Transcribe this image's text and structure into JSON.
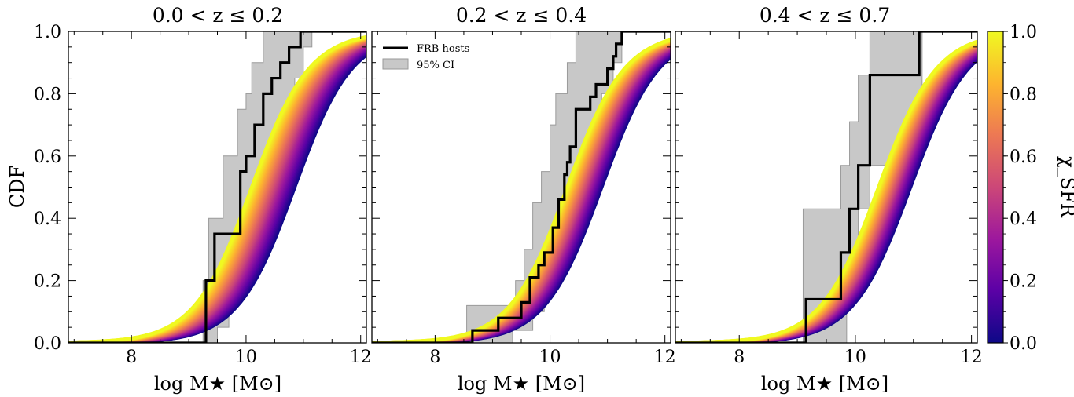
{
  "chart_data": {
    "type": "line",
    "ylabel": "CDF",
    "colorbar": {
      "label": "χ_SFR",
      "ticks": [
        "0.0",
        "0.2",
        "0.4",
        "0.6",
        "0.8",
        "1.0"
      ],
      "range": [
        0,
        1
      ],
      "colormap": "plasma",
      "colors": [
        "#0d0887",
        "#5c01a6",
        "#9c179e",
        "#cc4778",
        "#ed7953",
        "#fdb42f",
        "#f0f921"
      ]
    },
    "legend": {
      "position": "upper-left of middle panel",
      "entries": [
        {
          "label": "FRB hosts",
          "color": "#000000",
          "kind": "line"
        },
        {
          "label": "95% CI",
          "color": "#c8c8c8",
          "kind": "patch"
        }
      ]
    },
    "panels": [
      {
        "title": "0.0 < z ≤ 0.2",
        "xlabel": "log M★ [M⊙]",
        "xlim": [
          6.9,
          12.1
        ],
        "ylim": [
          0,
          1
        ],
        "xticks": [
          "8",
          "10",
          "12"
        ],
        "yticks": [
          "0.0",
          "0.2",
          "0.4",
          "0.6",
          "0.8",
          "1.0"
        ],
        "model_center": [
          10.1,
          10.85
        ],
        "frb_steps": [
          [
            6.9,
            0
          ],
          [
            9.3,
            0
          ],
          [
            9.3,
            0.2
          ],
          [
            9.45,
            0.2
          ],
          [
            9.45,
            0.35
          ],
          [
            9.9,
            0.35
          ],
          [
            9.9,
            0.55
          ],
          [
            10.0,
            0.55
          ],
          [
            10.0,
            0.6
          ],
          [
            10.15,
            0.6
          ],
          [
            10.15,
            0.7
          ],
          [
            10.3,
            0.7
          ],
          [
            10.3,
            0.8
          ],
          [
            10.45,
            0.8
          ],
          [
            10.45,
            0.85
          ],
          [
            10.6,
            0.85
          ],
          [
            10.6,
            0.9
          ],
          [
            10.75,
            0.9
          ],
          [
            10.75,
            0.95
          ],
          [
            10.95,
            0.95
          ],
          [
            10.95,
            1.0
          ],
          [
            12.1,
            1.0
          ]
        ],
        "ci_upper": [
          [
            6.9,
            0
          ],
          [
            9.25,
            0
          ],
          [
            9.25,
            0.2
          ],
          [
            9.35,
            0.2
          ],
          [
            9.35,
            0.4
          ],
          [
            9.6,
            0.4
          ],
          [
            9.6,
            0.6
          ],
          [
            9.85,
            0.6
          ],
          [
            9.85,
            0.75
          ],
          [
            10.0,
            0.75
          ],
          [
            10.0,
            0.8
          ],
          [
            10.1,
            0.8
          ],
          [
            10.1,
            0.9
          ],
          [
            10.3,
            0.9
          ],
          [
            10.3,
            1.0
          ],
          [
            12.1,
            1.0
          ]
        ],
        "ci_lower": [
          [
            6.9,
            0
          ],
          [
            9.5,
            0
          ],
          [
            9.5,
            0.05
          ],
          [
            9.7,
            0.05
          ],
          [
            9.7,
            0.15
          ],
          [
            9.9,
            0.15
          ],
          [
            9.9,
            0.25
          ],
          [
            10.1,
            0.25
          ],
          [
            10.1,
            0.4
          ],
          [
            10.3,
            0.4
          ],
          [
            10.3,
            0.55
          ],
          [
            10.5,
            0.55
          ],
          [
            10.5,
            0.65
          ],
          [
            10.7,
            0.65
          ],
          [
            10.7,
            0.75
          ],
          [
            10.85,
            0.75
          ],
          [
            10.85,
            0.85
          ],
          [
            11.0,
            0.85
          ],
          [
            11.0,
            0.95
          ],
          [
            11.15,
            0.95
          ],
          [
            11.15,
            1.0
          ],
          [
            12.1,
            1.0
          ]
        ]
      },
      {
        "title": "0.2 < z ≤ 0.4",
        "xlabel": "log M★ [M⊙]",
        "xlim": [
          6.9,
          12.1
        ],
        "ylim": [
          0,
          1
        ],
        "xticks": [
          "8",
          "10",
          "12"
        ],
        "yticks": [
          "0.0",
          "0.2",
          "0.4",
          "0.6",
          "0.8",
          "1.0"
        ],
        "model_center": [
          10.3,
          10.9
        ],
        "frb_steps": [
          [
            6.9,
            0
          ],
          [
            8.65,
            0
          ],
          [
            8.65,
            0.04
          ],
          [
            9.1,
            0.04
          ],
          [
            9.1,
            0.08
          ],
          [
            9.5,
            0.08
          ],
          [
            9.5,
            0.13
          ],
          [
            9.65,
            0.13
          ],
          [
            9.65,
            0.21
          ],
          [
            9.8,
            0.21
          ],
          [
            9.8,
            0.25
          ],
          [
            9.9,
            0.25
          ],
          [
            9.9,
            0.29
          ],
          [
            10.05,
            0.29
          ],
          [
            10.05,
            0.37
          ],
          [
            10.15,
            0.37
          ],
          [
            10.15,
            0.46
          ],
          [
            10.25,
            0.46
          ],
          [
            10.25,
            0.54
          ],
          [
            10.3,
            0.54
          ],
          [
            10.3,
            0.58
          ],
          [
            10.35,
            0.58
          ],
          [
            10.35,
            0.63
          ],
          [
            10.45,
            0.63
          ],
          [
            10.45,
            0.75
          ],
          [
            10.7,
            0.75
          ],
          [
            10.7,
            0.79
          ],
          [
            10.8,
            0.79
          ],
          [
            10.8,
            0.83
          ],
          [
            11.0,
            0.83
          ],
          [
            11.0,
            0.88
          ],
          [
            11.1,
            0.88
          ],
          [
            11.1,
            0.92
          ],
          [
            11.15,
            0.92
          ],
          [
            11.15,
            0.96
          ],
          [
            11.25,
            0.96
          ],
          [
            11.25,
            1.0
          ],
          [
            12.1,
            1.0
          ]
        ],
        "ci_upper": [
          [
            6.9,
            0
          ],
          [
            8.55,
            0
          ],
          [
            8.55,
            0.12
          ],
          [
            9.4,
            0.12
          ],
          [
            9.4,
            0.2
          ],
          [
            9.55,
            0.2
          ],
          [
            9.55,
            0.3
          ],
          [
            9.7,
            0.3
          ],
          [
            9.7,
            0.45
          ],
          [
            9.85,
            0.45
          ],
          [
            9.85,
            0.55
          ],
          [
            10.0,
            0.55
          ],
          [
            10.0,
            0.7
          ],
          [
            10.1,
            0.7
          ],
          [
            10.1,
            0.8
          ],
          [
            10.3,
            0.8
          ],
          [
            10.3,
            0.9
          ],
          [
            10.45,
            0.9
          ],
          [
            10.45,
            1.0
          ],
          [
            12.1,
            1.0
          ]
        ],
        "ci_lower": [
          [
            6.9,
            0
          ],
          [
            9.35,
            0
          ],
          [
            9.35,
            0.04
          ],
          [
            9.7,
            0.04
          ],
          [
            9.7,
            0.1
          ],
          [
            9.9,
            0.1
          ],
          [
            9.9,
            0.2
          ],
          [
            10.1,
            0.2
          ],
          [
            10.1,
            0.3
          ],
          [
            10.3,
            0.3
          ],
          [
            10.3,
            0.4
          ],
          [
            10.45,
            0.4
          ],
          [
            10.45,
            0.5
          ],
          [
            10.6,
            0.5
          ],
          [
            10.6,
            0.6
          ],
          [
            10.75,
            0.6
          ],
          [
            10.75,
            0.7
          ],
          [
            10.9,
            0.7
          ],
          [
            10.9,
            0.8
          ],
          [
            11.1,
            0.8
          ],
          [
            11.1,
            0.9
          ],
          [
            11.25,
            0.9
          ],
          [
            11.25,
            1.0
          ],
          [
            12.1,
            1.0
          ]
        ]
      },
      {
        "title": "0.4 < z ≤ 0.7",
        "xlabel": "log M★ [M⊙]",
        "xlim": [
          6.9,
          12.1
        ],
        "ylim": [
          0,
          1
        ],
        "xticks": [
          "8",
          "10",
          "12"
        ],
        "yticks": [
          "0.0",
          "0.2",
          "0.4",
          "0.6",
          "0.8",
          "1.0"
        ],
        "model_center": [
          10.4,
          10.95
        ],
        "frb_steps": [
          [
            6.9,
            0
          ],
          [
            9.15,
            0
          ],
          [
            9.15,
            0.14
          ],
          [
            9.75,
            0.14
          ],
          [
            9.75,
            0.29
          ],
          [
            9.9,
            0.29
          ],
          [
            9.9,
            0.43
          ],
          [
            10.05,
            0.43
          ],
          [
            10.05,
            0.57
          ],
          [
            10.25,
            0.57
          ],
          [
            10.25,
            0.86
          ],
          [
            11.1,
            0.86
          ],
          [
            11.1,
            1.0
          ],
          [
            12.1,
            1.0
          ]
        ],
        "ci_upper": [
          [
            6.9,
            0
          ],
          [
            9.1,
            0
          ],
          [
            9.1,
            0.43
          ],
          [
            9.75,
            0.43
          ],
          [
            9.75,
            0.57
          ],
          [
            9.9,
            0.57
          ],
          [
            9.9,
            0.71
          ],
          [
            10.05,
            0.71
          ],
          [
            10.05,
            0.86
          ],
          [
            10.25,
            0.86
          ],
          [
            10.25,
            1.0
          ],
          [
            12.1,
            1.0
          ]
        ],
        "ci_lower": [
          [
            6.9,
            0
          ],
          [
            9.85,
            0
          ],
          [
            9.85,
            0.14
          ],
          [
            10.05,
            0.14
          ],
          [
            10.05,
            0.43
          ],
          [
            10.25,
            0.43
          ],
          [
            10.25,
            0.57
          ],
          [
            11.1,
            0.57
          ],
          [
            11.1,
            0.71
          ],
          [
            11.15,
            0.71
          ],
          [
            11.15,
            1.0
          ],
          [
            12.1,
            1.0
          ]
        ]
      }
    ]
  }
}
